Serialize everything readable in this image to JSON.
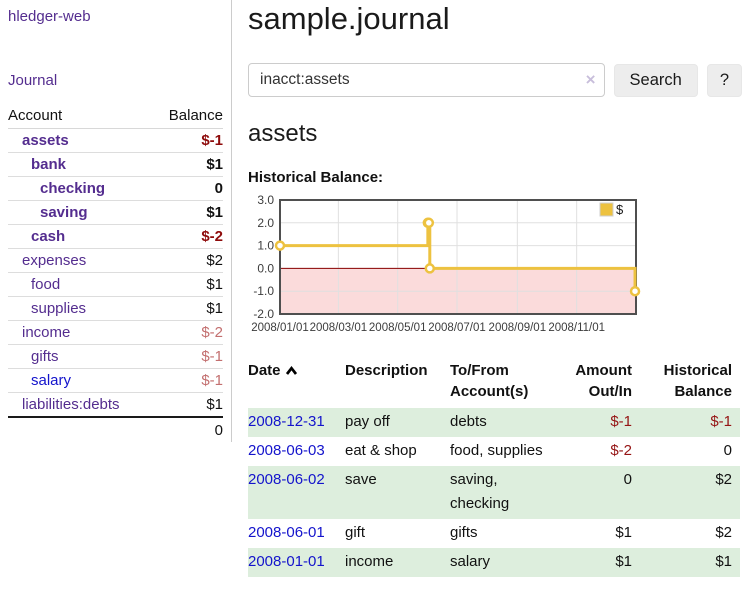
{
  "app": {
    "brand": "hledger-web",
    "nav_journal": "Journal"
  },
  "sidebar": {
    "header": {
      "account": "Account",
      "balance": "Balance"
    },
    "accounts": [
      {
        "name": "assets",
        "depth": 1,
        "balance": "$-1",
        "bold": true,
        "name_blue": false,
        "bal_class": "neg-strong"
      },
      {
        "name": "bank",
        "depth": 2,
        "balance": "$1",
        "bold": true,
        "name_blue": false,
        "bal_class": ""
      },
      {
        "name": "checking",
        "depth": 3,
        "balance": "0",
        "bold": true,
        "name_blue": false,
        "bal_class": ""
      },
      {
        "name": "saving",
        "depth": 3,
        "balance": "$1",
        "bold": true,
        "name_blue": false,
        "bal_class": ""
      },
      {
        "name": "cash",
        "depth": 2,
        "balance": "$-2",
        "bold": true,
        "name_blue": false,
        "bal_class": "neg-strong"
      },
      {
        "name": "expenses",
        "depth": 1,
        "balance": "$2",
        "bold": false,
        "name_blue": false,
        "bal_class": ""
      },
      {
        "name": "food",
        "depth": 2,
        "balance": "$1",
        "bold": false,
        "name_blue": false,
        "bal_class": ""
      },
      {
        "name": "supplies",
        "depth": 2,
        "balance": "$1",
        "bold": false,
        "name_blue": false,
        "bal_class": ""
      },
      {
        "name": "income",
        "depth": 1,
        "balance": "$-2",
        "bold": false,
        "name_blue": false,
        "bal_class": "neg-muted"
      },
      {
        "name": "gifts",
        "depth": 2,
        "balance": "$-1",
        "bold": false,
        "name_blue": false,
        "bal_class": "neg-muted"
      },
      {
        "name": "salary",
        "depth": 2,
        "balance": "$-1",
        "bold": false,
        "name_blue": true,
        "bal_class": "neg-muted"
      },
      {
        "name": "liabilities:debts",
        "depth": 1,
        "balance": "$1",
        "bold": false,
        "name_blue": false,
        "bal_class": ""
      }
    ],
    "total": "0"
  },
  "main": {
    "title": "sample.journal",
    "search": {
      "value": "inacct:assets",
      "clear_icon": "×",
      "button": "Search",
      "help": "?"
    },
    "account_title": "assets",
    "chart_heading": "Historical Balance:"
  },
  "chart_data": {
    "type": "line",
    "step": true,
    "title": "Historical Balance:",
    "series": [
      {
        "name": "$",
        "color": "#edc240",
        "points": [
          [
            "2008-01-01",
            1
          ],
          [
            "2008-06-01",
            2
          ],
          [
            "2008-06-02",
            2
          ],
          [
            "2008-06-03",
            0
          ],
          [
            "2008-12-31",
            -1
          ]
        ]
      }
    ],
    "x_ticks": [
      "2008/01/01",
      "2008/03/01",
      "2008/05/01",
      "2008/07/01",
      "2008/09/01",
      "2008/11/01"
    ],
    "y_ticks": [
      "3.0",
      "2.0",
      "1.0",
      "0.0",
      "-1.0",
      "-2.0"
    ],
    "xlim": [
      "2008-01-01",
      "2009-01-01"
    ],
    "ylim": [
      -2,
      3
    ],
    "grid": true,
    "legend_position": "top-right",
    "negative_region_color": "#fbdbdb",
    "zero_line_color": "#8b0000"
  },
  "table": {
    "headers": {
      "date": "Date",
      "description": "Description",
      "accounts": "To/From Account(s)",
      "amount": "Amount Out/In",
      "balance": "Historical Balance"
    },
    "rows": [
      {
        "date": "2008-12-31",
        "description": "pay off",
        "accounts": "debts",
        "amount": "$-1",
        "balance": "$-1",
        "amount_neg": true,
        "balance_neg": true
      },
      {
        "date": "2008-06-03",
        "description": "eat & shop",
        "accounts": "food, supplies",
        "amount": "$-2",
        "balance": "0",
        "amount_neg": true,
        "balance_neg": false
      },
      {
        "date": "2008-06-02",
        "description": "save",
        "accounts": "saving, checking",
        "amount": "0",
        "balance": "$2",
        "amount_neg": false,
        "balance_neg": false
      },
      {
        "date": "2008-06-01",
        "description": "gift",
        "accounts": "gifts",
        "amount": "$1",
        "balance": "$2",
        "amount_neg": false,
        "balance_neg": false
      },
      {
        "date": "2008-01-01",
        "description": "income",
        "accounts": "salary",
        "amount": "$1",
        "balance": "$1",
        "amount_neg": false,
        "balance_neg": false
      }
    ]
  }
}
